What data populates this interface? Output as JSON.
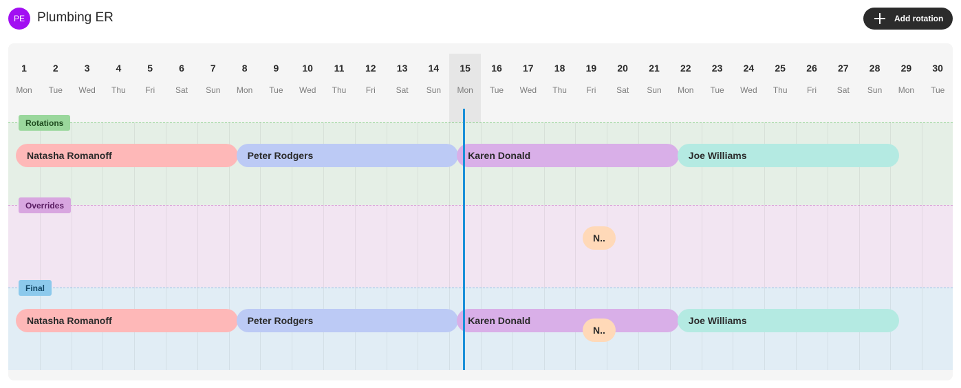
{
  "header": {
    "avatar_initials": "PE",
    "title": "Plumbing ER",
    "add_button_label": "Add rotation"
  },
  "calendar": {
    "today_index": 14,
    "days": [
      {
        "num": "1",
        "wd": "Mon"
      },
      {
        "num": "2",
        "wd": "Tue"
      },
      {
        "num": "3",
        "wd": "Wed"
      },
      {
        "num": "4",
        "wd": "Thu"
      },
      {
        "num": "5",
        "wd": "Fri"
      },
      {
        "num": "6",
        "wd": "Sat"
      },
      {
        "num": "7",
        "wd": "Sun"
      },
      {
        "num": "8",
        "wd": "Mon"
      },
      {
        "num": "9",
        "wd": "Tue"
      },
      {
        "num": "10",
        "wd": "Wed"
      },
      {
        "num": "11",
        "wd": "Thu"
      },
      {
        "num": "12",
        "wd": "Fri"
      },
      {
        "num": "13",
        "wd": "Sat"
      },
      {
        "num": "14",
        "wd": "Sun"
      },
      {
        "num": "15",
        "wd": "Mon"
      },
      {
        "num": "16",
        "wd": "Tue"
      },
      {
        "num": "17",
        "wd": "Wed"
      },
      {
        "num": "18",
        "wd": "Thu"
      },
      {
        "num": "19",
        "wd": "Fri"
      },
      {
        "num": "20",
        "wd": "Sat"
      },
      {
        "num": "21",
        "wd": "Sun"
      },
      {
        "num": "22",
        "wd": "Mon"
      },
      {
        "num": "23",
        "wd": "Tue"
      },
      {
        "num": "24",
        "wd": "Wed"
      },
      {
        "num": "25",
        "wd": "Thu"
      },
      {
        "num": "26",
        "wd": "Fri"
      },
      {
        "num": "27",
        "wd": "Sat"
      },
      {
        "num": "28",
        "wd": "Sun"
      },
      {
        "num": "29",
        "wd": "Mon"
      },
      {
        "num": "30",
        "wd": "Tue"
      }
    ]
  },
  "sections": {
    "rotations": {
      "label": "Rotations",
      "shifts": [
        {
          "name": "Natasha Romanoff",
          "start_day": 1,
          "end_day": 7,
          "color": "#feb8b8"
        },
        {
          "name": "Peter Rodgers",
          "start_day": 8,
          "end_day": 14,
          "color": "#bccaf5"
        },
        {
          "name": "Karen Donald",
          "start_day": 15,
          "end_day": 21,
          "color": "#d9afe8"
        },
        {
          "name": "Joe Williams",
          "start_day": 22,
          "end_day": 28,
          "color": "#b4eae2"
        }
      ]
    },
    "overrides": {
      "label": "Overrides",
      "shifts": [
        {
          "name": "N..",
          "start_day": 19,
          "end_day": 19,
          "color": "#ffd9b8"
        }
      ]
    },
    "final": {
      "label": "Final",
      "shifts": [
        {
          "name": "Natasha Romanoff",
          "start_day": 1,
          "end_day": 7,
          "color": "#feb8b8"
        },
        {
          "name": "Peter Rodgers",
          "start_day": 8,
          "end_day": 14,
          "color": "#bccaf5"
        },
        {
          "name": "Karen Donald",
          "start_day": 15,
          "end_day": 21,
          "color": "#d9afe8"
        },
        {
          "name": "Joe Williams",
          "start_day": 22,
          "end_day": 28,
          "color": "#b4eae2"
        },
        {
          "name": "N..",
          "start_day": 19,
          "end_day": 19,
          "color": "#ffd9b8"
        }
      ]
    }
  },
  "colors": {
    "avatar": "#a20ff2",
    "now_line": "#1a90d8",
    "button": "#2b2b2b"
  }
}
